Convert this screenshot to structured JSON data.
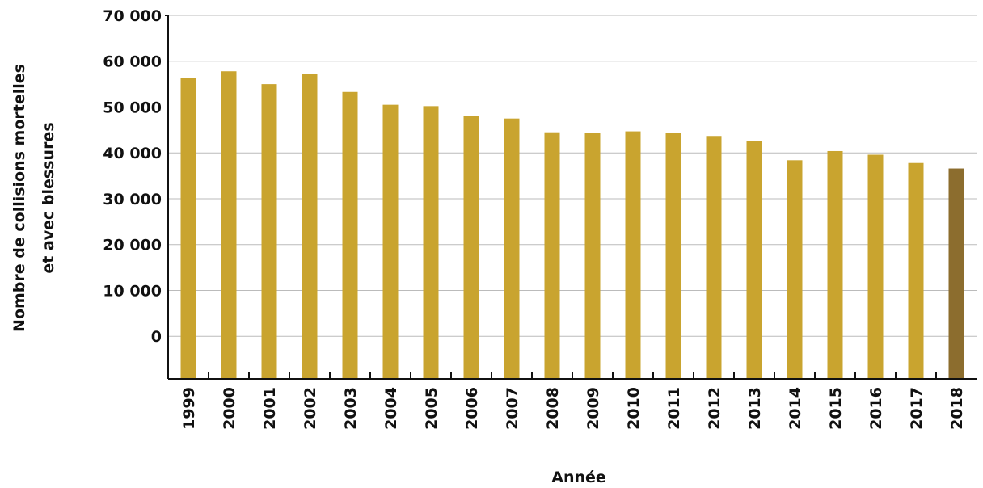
{
  "chart_data": {
    "type": "bar",
    "title": "",
    "xlabel": "Année",
    "ylabel_lines": [
      "Nombre de collisions mortelles",
      "et avec blessures"
    ],
    "categories": [
      "1999",
      "2000",
      "2001",
      "2002",
      "2003",
      "2004",
      "2005",
      "2006",
      "2007",
      "2008",
      "2009",
      "2010",
      "2011",
      "2012",
      "2013",
      "2014",
      "2015",
      "2016",
      "2017",
      "2018"
    ],
    "values": [
      56400,
      57800,
      55000,
      57200,
      53300,
      50500,
      50200,
      48000,
      47500,
      44500,
      44300,
      44700,
      44300,
      43700,
      42600,
      38400,
      40400,
      39600,
      37800,
      36600
    ],
    "highlight_index": 19,
    "colors": {
      "bar": "#C9A42F",
      "highlight": "#8C6D2E",
      "grid": "#bbbbbb",
      "axis": "#111111"
    },
    "ylim": [
      -9300,
      70000
    ],
    "ytick_values": [
      0,
      10000,
      20000,
      30000,
      40000,
      50000,
      60000,
      70000
    ],
    "ytick_labels": [
      "0",
      "10 000",
      "20 000",
      "30 000",
      "40 000",
      "50 000",
      "60 000",
      "70 000"
    ],
    "grid": true,
    "legend": "none"
  }
}
